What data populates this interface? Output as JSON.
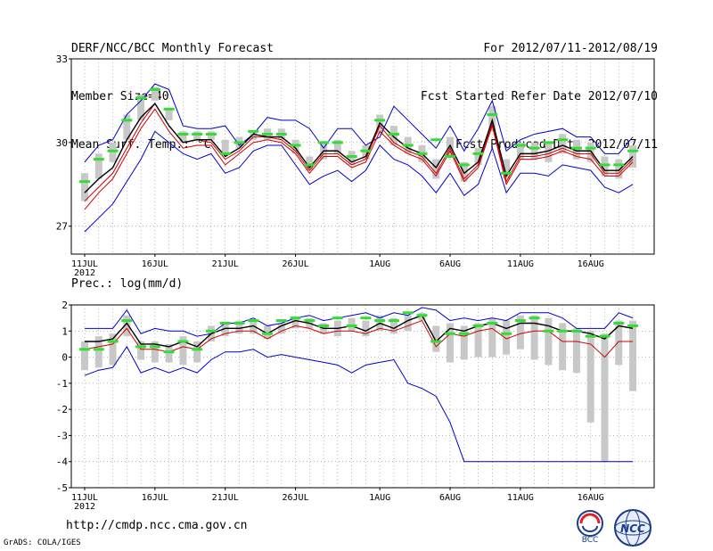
{
  "header": {
    "title": "DERF/NCC/BCC Monthly Forecast",
    "member_size": "Member Size=40",
    "variable": "Mean Surf. Temp.: °C",
    "period": "For 2012/07/11-2012/08/19",
    "started": "Fcst Started Refer Date 2012/07/10",
    "produced": "Fcst Produced Date 2012/07/11"
  },
  "footer": {
    "url": "http://cmdp.ncc.cma.gov.cn",
    "credit": "GrADS: COLA/IGES",
    "logo1": "BCC",
    "logo2": "NCC"
  },
  "colors": {
    "max_min": "#0000cc",
    "mean": "#000000",
    "median": "#cc0000",
    "obs": "#33dd33",
    "box": "#c8c8c8",
    "grid": "#888888"
  },
  "chart_data": [
    {
      "type": "line",
      "title": "Mean Surf. Temp.: °C",
      "ylim": [
        26,
        33
      ],
      "yticks": [
        27,
        30,
        33
      ],
      "x_labels": [
        "11JUL",
        "16JUL",
        "21JUL",
        "26JUL",
        "1AUG",
        "6AUG",
        "11AUG",
        "16AUG"
      ],
      "x_label_days": [
        0,
        5,
        10,
        15,
        21,
        26,
        31,
        36
      ],
      "year_label": "2012",
      "days": 40,
      "series": {
        "max": [
          29.3,
          29.9,
          30.1,
          31.0,
          31.5,
          32.1,
          31.9,
          30.6,
          30.5,
          30.5,
          30.6,
          29.9,
          30.3,
          30.9,
          30.8,
          30.8,
          30.5,
          29.8,
          30.5,
          30.5,
          29.9,
          30.2,
          31.3,
          30.8,
          30.3,
          29.8,
          30.6,
          29.7,
          30.5,
          31.5,
          29.7,
          30.1,
          30.3,
          30.4,
          30.5,
          30.2,
          30.2,
          29.6,
          29.6,
          30.2
        ],
        "mean": [
          28.2,
          28.7,
          29.1,
          30.1,
          30.9,
          31.4,
          30.6,
          30.0,
          30.1,
          30.1,
          29.5,
          29.8,
          30.3,
          30.2,
          30.2,
          29.8,
          29.1,
          29.7,
          29.7,
          29.3,
          29.5,
          30.7,
          30.2,
          29.8,
          29.6,
          29.1,
          29.9,
          28.9,
          29.3,
          30.8,
          28.8,
          29.6,
          29.6,
          29.7,
          29.9,
          29.7,
          29.7,
          29.0,
          29.0,
          29.5
        ],
        "median": [
          27.9,
          28.4,
          28.9,
          29.8,
          30.7,
          31.4,
          30.6,
          30.0,
          30.1,
          30.0,
          29.4,
          29.7,
          30.2,
          30.2,
          30.1,
          29.7,
          29.0,
          29.6,
          29.6,
          29.2,
          29.4,
          30.6,
          30.0,
          29.7,
          29.5,
          28.9,
          29.8,
          28.7,
          29.2,
          30.7,
          28.6,
          29.5,
          29.5,
          29.6,
          29.8,
          29.6,
          29.6,
          28.9,
          28.9,
          29.4
        ],
        "median_low": [
          27.6,
          28.2,
          28.7,
          29.6,
          30.5,
          31.2,
          30.4,
          29.8,
          29.9,
          29.9,
          29.2,
          29.6,
          30.0,
          30.1,
          30.0,
          29.6,
          28.9,
          29.5,
          29.5,
          29.1,
          29.3,
          30.4,
          29.9,
          29.6,
          29.4,
          28.8,
          29.7,
          28.6,
          29.1,
          30.6,
          28.5,
          29.4,
          29.4,
          29.5,
          29.7,
          29.5,
          29.4,
          28.8,
          28.8,
          29.3
        ],
        "min": [
          26.8,
          27.3,
          27.8,
          28.6,
          29.4,
          30.4,
          30.0,
          29.6,
          29.4,
          29.6,
          28.9,
          29.1,
          29.7,
          29.9,
          29.9,
          29.2,
          28.5,
          28.8,
          29.0,
          28.6,
          29.0,
          29.9,
          29.4,
          29.2,
          28.8,
          28.2,
          28.9,
          28.1,
          28.5,
          29.8,
          28.2,
          28.9,
          28.9,
          28.8,
          29.2,
          29.1,
          29.0,
          28.4,
          28.2,
          28.5
        ],
        "box_low": [
          27.9,
          28.7,
          29.3,
          30.1,
          30.8,
          31.5,
          30.8,
          30.0,
          30.1,
          30.1,
          29.6,
          29.8,
          30.1,
          30.1,
          30.1,
          29.6,
          29.0,
          29.4,
          29.6,
          29.2,
          29.4,
          30.3,
          29.9,
          29.6,
          29.3,
          28.7,
          29.5,
          28.6,
          29.2,
          30.4,
          28.7,
          29.4,
          29.4,
          29.3,
          29.6,
          29.4,
          29.3,
          28.8,
          28.7,
          29.1
        ],
        "box_high": [
          28.9,
          29.6,
          30.0,
          31.0,
          31.7,
          32.0,
          31.2,
          30.4,
          30.4,
          30.4,
          30.1,
          30.2,
          30.4,
          30.5,
          30.5,
          30.1,
          29.5,
          30.0,
          30.1,
          29.7,
          29.9,
          31.0,
          30.6,
          30.2,
          29.9,
          29.4,
          30.2,
          29.3,
          29.8,
          31.3,
          29.4,
          30.0,
          30.0,
          30.0,
          30.3,
          30.1,
          30.0,
          29.5,
          29.4,
          29.9
        ],
        "obs": [
          28.6,
          29.4,
          29.7,
          30.8,
          31.6,
          31.9,
          31.2,
          30.3,
          30.3,
          30.3,
          29.6,
          30.0,
          30.4,
          30.3,
          30.3,
          29.9,
          29.2,
          30.0,
          30.0,
          29.5,
          29.7,
          30.8,
          30.3,
          29.9,
          29.6,
          30.1,
          29.5,
          29.2,
          29.6,
          31.0,
          28.9,
          29.9,
          29.8,
          30.0,
          30.1,
          29.8,
          29.8,
          29.2,
          29.2,
          29.7
        ]
      }
    },
    {
      "type": "line",
      "title": "Prec.: log(mm/d)",
      "ylim": [
        -5,
        2
      ],
      "yticks": [
        -5,
        -4,
        -3,
        -2,
        -1,
        0,
        1,
        2
      ],
      "x_labels": [
        "11JUL",
        "16JUL",
        "21JUL",
        "26JUL",
        "1AUG",
        "6AUG",
        "11AUG",
        "16AUG"
      ],
      "x_label_days": [
        0,
        5,
        10,
        15,
        21,
        26,
        31,
        36
      ],
      "year_label": "2012",
      "days": 40,
      "series": {
        "max": [
          1.1,
          1.1,
          1.1,
          1.8,
          0.9,
          1.1,
          1.0,
          1.0,
          0.8,
          0.9,
          1.3,
          1.3,
          1.5,
          1.2,
          1.3,
          1.5,
          1.6,
          1.4,
          1.5,
          1.6,
          1.7,
          1.5,
          1.7,
          1.6,
          1.9,
          1.8,
          1.4,
          1.5,
          1.4,
          1.5,
          1.4,
          1.7,
          1.7,
          1.7,
          1.5,
          1.1,
          1.1,
          1.1,
          1.7,
          1.5
        ],
        "mean": [
          0.6,
          0.6,
          0.7,
          1.3,
          0.5,
          0.5,
          0.4,
          0.6,
          0.4,
          0.9,
          1.1,
          1.1,
          1.2,
          0.9,
          1.2,
          1.4,
          1.3,
          1.1,
          1.1,
          1.2,
          1.0,
          1.3,
          1.1,
          1.4,
          1.6,
          0.6,
          1.1,
          1.0,
          1.2,
          1.3,
          1.1,
          1.3,
          1.3,
          1.2,
          1.0,
          1.0,
          0.9,
          0.7,
          1.2,
          1.1
        ],
        "median": [
          0.3,
          0.4,
          0.5,
          1.1,
          0.3,
          0.3,
          0.2,
          0.4,
          0.3,
          0.7,
          0.9,
          1.0,
          1.0,
          0.7,
          1.0,
          1.2,
          1.1,
          0.9,
          1.0,
          1.0,
          0.9,
          1.1,
          1.0,
          1.2,
          1.4,
          0.4,
          0.9,
          0.8,
          1.0,
          1.1,
          0.7,
          0.9,
          1.0,
          1.0,
          0.6,
          0.6,
          0.5,
          0.0,
          0.6,
          0.6
        ],
        "min": [
          -0.7,
          -0.5,
          -0.4,
          0.4,
          -0.6,
          -0.4,
          -0.6,
          -0.4,
          -0.6,
          -0.1,
          0.2,
          0.2,
          0.3,
          0.0,
          0.1,
          0.0,
          -0.1,
          -0.2,
          -0.3,
          -0.6,
          -0.3,
          -0.2,
          -0.1,
          -1.0,
          -1.2,
          -1.5,
          -2.5,
          -4.0,
          -4.0,
          -4.0,
          -4.0,
          -4.0,
          -4.0,
          -4.0,
          -4.0,
          -4.0,
          -4.0,
          -4.0,
          -4.0,
          -4.0
        ],
        "box_low": [
          -0.5,
          -0.4,
          -0.3,
          0.8,
          -0.1,
          -0.2,
          -0.2,
          -0.3,
          -0.2,
          0.6,
          0.8,
          0.9,
          0.9,
          0.7,
          0.9,
          1.1,
          1.1,
          0.9,
          0.8,
          1.0,
          0.8,
          1.0,
          0.9,
          1.0,
          1.4,
          0.2,
          -0.2,
          -0.1,
          0.0,
          0.0,
          0.1,
          0.3,
          -0.1,
          -0.3,
          -0.5,
          -0.6,
          -2.5,
          -4.0,
          -0.3,
          -1.3
        ],
        "box_high": [
          0.6,
          0.8,
          0.9,
          1.6,
          0.6,
          0.6,
          0.5,
          0.8,
          0.6,
          1.2,
          1.3,
          1.4,
          1.4,
          1.2,
          1.3,
          1.5,
          1.5,
          1.3,
          1.4,
          1.5,
          1.4,
          1.6,
          1.5,
          1.6,
          1.7,
          1.2,
          1.3,
          1.2,
          1.3,
          1.5,
          1.4,
          1.6,
          1.6,
          1.5,
          1.3,
          1.1,
          1.0,
          0.9,
          1.4,
          1.4
        ],
        "obs": [
          0.3,
          0.3,
          0.6,
          1.4,
          0.4,
          0.4,
          0.2,
          0.6,
          0.3,
          1.0,
          1.3,
          1.3,
          1.4,
          0.9,
          1.4,
          1.5,
          1.4,
          1.2,
          1.5,
          1.2,
          1.5,
          1.4,
          1.4,
          1.7,
          1.6,
          0.6,
          0.9,
          0.9,
          1.2,
          1.3,
          0.9,
          1.4,
          1.5,
          1.0,
          1.0,
          1.0,
          0.8,
          0.8,
          1.3,
          1.2
        ]
      }
    }
  ]
}
